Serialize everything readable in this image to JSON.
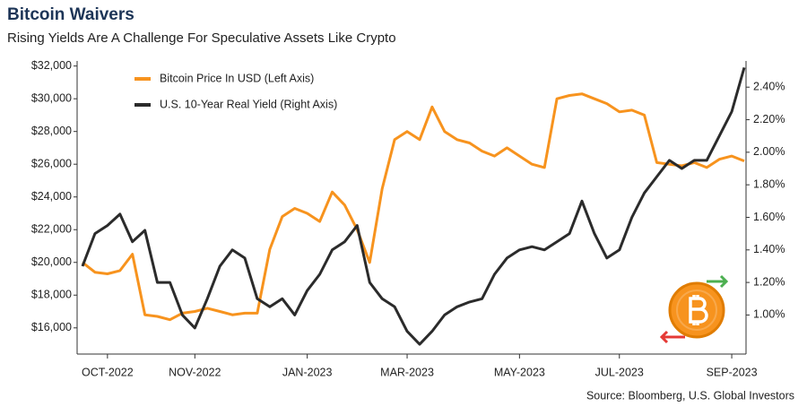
{
  "chart_data": {
    "type": "line",
    "title": "Bitcoin Waivers",
    "subtitle": "Rising Yields Are A Challenge For Speculative Assets Like Crypto",
    "source": "Source: Bloomberg, U.S. Global Investors",
    "categories": [
      null,
      null,
      "OCT-2022",
      null,
      null,
      null,
      null,
      null,
      null,
      "NOV-2022",
      null,
      null,
      null,
      null,
      null,
      null,
      null,
      null,
      "JAN-2023",
      null,
      null,
      null,
      null,
      null,
      null,
      null,
      "MAR-2023",
      null,
      null,
      null,
      null,
      null,
      null,
      null,
      null,
      "MAY-2023",
      null,
      null,
      null,
      null,
      null,
      null,
      null,
      "JUL-2023",
      null,
      null,
      null,
      null,
      null,
      null,
      null,
      null,
      "SEP-2023",
      null
    ],
    "series": [
      {
        "name": "Bitcoin Price In USD (Left Axis)",
        "color": "#f7931e",
        "axis": "y",
        "values": [
          20000,
          19400,
          19300,
          19500,
          20500,
          16800,
          16700,
          16500,
          16900,
          17000,
          17200,
          17000,
          16800,
          16900,
          16900,
          20800,
          22800,
          23300,
          23000,
          22500,
          24300,
          23500,
          22000,
          20000,
          24500,
          27500,
          28000,
          27500,
          29500,
          28000,
          27500,
          27300,
          26800,
          26500,
          27000,
          26500,
          26000,
          25800,
          30000,
          30200,
          30300,
          30000,
          29700,
          29200,
          29300,
          29000,
          26100,
          26000,
          25900,
          26100,
          25800,
          26300,
          26500,
          26200
        ]
      },
      {
        "name": "U.S. 10-Year Real Yield (Right Axis)",
        "color": "#2b2b2b",
        "axis": "y2",
        "values": [
          1.3,
          1.5,
          1.55,
          1.62,
          1.45,
          1.52,
          1.2,
          1.2,
          1.0,
          0.92,
          1.1,
          1.3,
          1.4,
          1.35,
          1.1,
          1.05,
          1.1,
          1.0,
          1.15,
          1.25,
          1.4,
          1.45,
          1.55,
          1.2,
          1.1,
          1.05,
          0.9,
          0.82,
          0.9,
          1.0,
          1.05,
          1.08,
          1.1,
          1.25,
          1.35,
          1.4,
          1.42,
          1.4,
          1.45,
          1.5,
          1.7,
          1.5,
          1.35,
          1.4,
          1.6,
          1.75,
          1.85,
          1.95,
          1.9,
          1.95,
          1.95,
          2.1,
          2.25,
          2.52
        ]
      }
    ],
    "ylim": [
      14400,
      32200
    ],
    "yticks": [
      {
        "value": 16000,
        "label": "$16,000"
      },
      {
        "value": 18000,
        "label": "$18,000"
      },
      {
        "value": 20000,
        "label": "$20,000"
      },
      {
        "value": 22000,
        "label": "$22,000"
      },
      {
        "value": 24000,
        "label": "$24,000"
      },
      {
        "value": 26000,
        "label": "$26,000"
      },
      {
        "value": 28000,
        "label": "$28,000"
      },
      {
        "value": 30000,
        "label": "$30,000"
      },
      {
        "value": 32000,
        "label": "$32,000"
      }
    ],
    "y2lim": [
      0.76,
      2.55
    ],
    "y2ticks": [
      {
        "value": 1.0,
        "label": "1.00%"
      },
      {
        "value": 1.2,
        "label": "1.20%"
      },
      {
        "value": 1.4,
        "label": "1.40%"
      },
      {
        "value": 1.6,
        "label": "1.60%"
      },
      {
        "value": 1.8,
        "label": "1.80%"
      },
      {
        "value": 2.0,
        "label": "2.00%"
      },
      {
        "value": 2.2,
        "label": "2.20%"
      },
      {
        "value": 2.4,
        "label": "2.40%"
      }
    ],
    "legend": "upper left",
    "grid": false
  }
}
